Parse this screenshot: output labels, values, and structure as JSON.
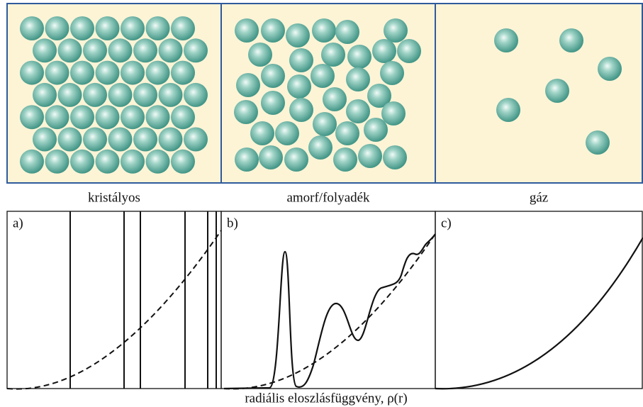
{
  "top_panels": [
    {
      "label": "kristályos"
    },
    {
      "label": "amorf/folyadék"
    },
    {
      "label": "gáz"
    }
  ],
  "plots": [
    {
      "label": "a)"
    },
    {
      "label": "b)"
    },
    {
      "label": "c)"
    }
  ],
  "x_axis_label": "radiális eloszlásfüggvény, ρ(r)"
}
